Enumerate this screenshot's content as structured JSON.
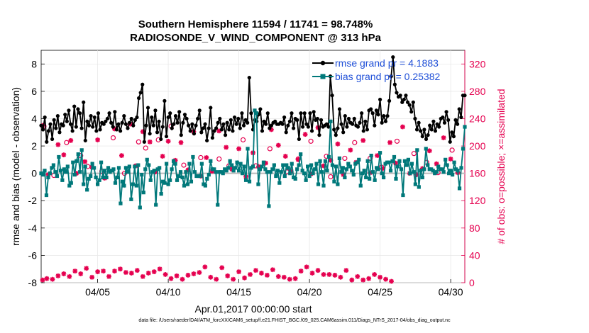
{
  "chart_data": {
    "type": "line",
    "title": "Southern Hemisphere 11594 / 11741 = 98.748%",
    "subtitle": "RADIOSONDE_V_WIND_COMPONENT @ 313 hPa",
    "xlabel": "Apr.01,2017 00:00:00 start",
    "ylabel": "rmse and bias (model - observation)",
    "y2label": "# of obs: o=possible; ×=assimilated",
    "x_ticks": [
      "04/05",
      "04/10",
      "04/15",
      "04/20",
      "04/25",
      "04/30"
    ],
    "x_tick_days": [
      5,
      10,
      15,
      20,
      25,
      30
    ],
    "xlim_days": [
      1,
      31
    ],
    "ylim": [
      -8,
      9
    ],
    "y_ticks": [
      -8,
      -6,
      -4,
      -2,
      0,
      2,
      4,
      6,
      8
    ],
    "y2lim": [
      0,
      340
    ],
    "y2_ticks": [
      0,
      40,
      80,
      120,
      160,
      200,
      240,
      280,
      320
    ],
    "legend": {
      "position": "top-right",
      "rmse_label": "rmse grand pr = 4.1883",
      "bias_label": "bias grand pr = 0.25382"
    },
    "series": [
      {
        "name": "rmse",
        "color": "#000000",
        "values": [
          3.5,
          3.2,
          4.1,
          2.3,
          3.1,
          3.6,
          2.5,
          3.9,
          3.3,
          4.2,
          3.0,
          3.6,
          3.5,
          4.3,
          3.8,
          4.6,
          3.6,
          3.1,
          4.9,
          3.4,
          4.7,
          4.4,
          3.3,
          5.2,
          2.4,
          3.8,
          3.5,
          4.2,
          3.4,
          4.1,
          3.1,
          4.4,
          3.2,
          3.7,
          3.6,
          3.8,
          4.0,
          4.4,
          3.7,
          3.4,
          4.5,
          3.2,
          3.6,
          3.1,
          3.7,
          4.2,
          3.6,
          3.3,
          3.7,
          4.0,
          3.5,
          3.9,
          4.1,
          5.5,
          5.9,
          6.5,
          2.3,
          3.5,
          4.8,
          2.9,
          4.1,
          3.5,
          4.6,
          3.0,
          3.8,
          2.5,
          3.4,
          5.3,
          2.7,
          4.1,
          4.4,
          3.3,
          3.6,
          4.2,
          3.7,
          4.5,
          2.8,
          3.7,
          4.3,
          4.0,
          3.5,
          3.1,
          3.6,
          2.9,
          3.5,
          4.0,
          4.6,
          3.0,
          3.3,
          3.6,
          2.4,
          3.3,
          4.8,
          2.6,
          3.1,
          3.3,
          3.7,
          4.0,
          3.2,
          3.6,
          2.8,
          3.7,
          3.2,
          3.9,
          3.1,
          4.1,
          3.6,
          4.0,
          3.3,
          4.4,
          3.5,
          3.9,
          3.7,
          7.0,
          4.4,
          3.2,
          3.9,
          3.8,
          4.3,
          4.7,
          3.1,
          3.8,
          3.6,
          4.4,
          3.3,
          3.5,
          3.7,
          3.8,
          3.6,
          3.6,
          3.7,
          3.6,
          4.1,
          3.0,
          3.5,
          3.8,
          4.4,
          3.3,
          4.0,
          3.9,
          2.5,
          4.4,
          3.4,
          4.4,
          3.6,
          3.4,
          4.4,
          3.1,
          4.5,
          3.9,
          4.0,
          2.8,
          3.9,
          3.4,
          3.5,
          3.6,
          3.4,
          7.1,
          5.7,
          3.2,
          2.8,
          3.3,
          4.7,
          3.6,
          3.0,
          4.2,
          3.4,
          4.0,
          3.7,
          3.6,
          4.0,
          3.5,
          3.4,
          3.7,
          4.4,
          3.1,
          3.8,
          3.2,
          4.6,
          4.7,
          4.4,
          3.5,
          4.6,
          4.3,
          5.4,
          3.7,
          4.2,
          3.8,
          4.2,
          5.3,
          7.1,
          8.5,
          6.5,
          5.9,
          5.6,
          5.7,
          5.2,
          5.4,
          5.7,
          5.2,
          5.0,
          4.5,
          5.2,
          4.0,
          3.2,
          3.7,
          3.1,
          2.7,
          3.2,
          2.5,
          2.8,
          3.5,
          3.2,
          3.8,
          3.1,
          3.6,
          3.4,
          4.0,
          4.1,
          3.7,
          4.5,
          3.9,
          2.3,
          3.0,
          2.7,
          3.9,
          3.6,
          4.7,
          4.1,
          5.7,
          5.7
        ]
      },
      {
        "name": "bias",
        "color": "#00787a",
        "values": [
          0.0,
          -0.1,
          0.2,
          -1.6,
          -0.3,
          0.0,
          0.4,
          0.6,
          0.1,
          -0.2,
          1.2,
          0.2,
          -0.5,
          0.3,
          0.1,
          0.5,
          -0.9,
          -0.7,
          0.8,
          -0.1,
          0.9,
          1.4,
          0.1,
          1.7,
          -0.8,
          0.5,
          -1.2,
          -0.4,
          -0.2,
          0.7,
          0.4,
          -0.3,
          -0.8,
          -0.5,
          0.8,
          -0.3,
          0.2,
          -0.3,
          0.4,
          0.1,
          0.2,
          0.3,
          -0.7,
          -0.3,
          0.4,
          -2.2,
          -0.6,
          -0.9,
          0.4,
          0.1,
          0.5,
          -1.9,
          -0.8,
          0.5,
          -0.9,
          0.6,
          -2.5,
          -0.1,
          -1.4,
          0.3,
          1.0,
          0.6,
          -0.5,
          0.1,
          0.2,
          -2.3,
          0.3,
          0.4,
          -1.5,
          -0.6,
          -0.7,
          0.7,
          -0.8,
          -0.5,
          0.3,
          0.9,
          0.7,
          -0.5,
          -0.2,
          0.1,
          -0.3,
          -0.9,
          0.1,
          -0.8,
          0.7,
          -0.6,
          1.2,
          0.1,
          -0.2,
          -0.2,
          -0.2,
          0.7,
          -0.8,
          -0.9,
          -0.4,
          -0.1,
          0.9,
          0.3,
          0.3,
          0.1,
          -2.3,
          0.1,
          0.1,
          0.0,
          0.3,
          0.2,
          0.4,
          0.9,
          0.6,
          0.2,
          0.4,
          0.8,
          0.2,
          0.7,
          0.0,
          0.5,
          -0.5,
          1.8,
          -0.6,
          0.4,
          0.5,
          4.6,
          4.4,
          -0.8,
          0.3,
          0.5,
          0.8,
          0.3,
          0.1,
          -2.4,
          0.1,
          0.3,
          0.6,
          -0.2,
          0.2,
          -0.7,
          0.1,
          0.6,
          -0.2,
          0.6,
          0.4,
          0.0,
          0.7,
          -0.3,
          -0.4,
          0.3,
          0.6,
          1.4,
          0.2,
          0.0,
          -0.5,
          0.5,
          -0.2,
          0.6,
          0.0,
          0.3,
          0.7,
          -0.8,
          0.9,
          0.1,
          -0.9,
          0.9,
          0.2,
          1.2,
          3.8,
          0.6,
          -0.6,
          0.5,
          -0.8,
          1.1,
          0.1,
          0.4,
          -0.3,
          0.3,
          0.7,
          0.5,
          0.2,
          -0.1,
          0.7,
          0.8,
          1.0,
          -0.9,
          0.0,
          0.2,
          -0.3,
          0.9,
          -0.4,
          1.3,
          0.1,
          -0.5,
          0.4,
          0.3,
          1.5,
          0.0,
          -0.3,
          0.7,
          0.8,
          0.8,
          0.2,
          0.9,
          1.2,
          -0.4,
          0.5,
          0.9,
          0.3,
          -1.6,
          0.9,
          0.6,
          1.0,
          0.0,
          0.7,
          0.1,
          -0.8,
          1.7,
          -1.0,
          0.2,
          -0.3,
          0.3,
          1.8,
          0.6,
          0.3,
          0.3,
          0.2,
          0.0,
          0.1,
          0.5,
          0.3,
          0.3,
          0.1,
          1.0,
          0.6,
          0.0,
          0.2,
          -0.1,
          0.8,
          0.3,
          0.2,
          -1.1,
          0.4,
          1.8,
          3.4
        ]
      },
      {
        "name": "obs possible",
        "color": "#e5004f",
        "days": [
          1.2,
          1.9,
          2.8,
          3.8,
          4.3,
          5.3,
          6.1,
          6.9,
          7.9,
          8.4,
          9.3,
          10.2,
          11.1,
          12.3,
          13.6,
          14.3,
          15.3,
          16.2,
          17.2,
          18.4,
          19.2,
          20.1,
          21.2,
          21.5,
          22.5,
          23.2,
          24.3,
          25.1,
          26.2,
          27.4,
          28.3,
          29.1,
          30.1
        ],
        "counts": [
          229,
          157,
          205,
          186,
          170,
          163,
          212,
          160,
          206,
          197,
          209,
          229,
          172,
          183,
          181,
          171,
          209,
          171,
          196,
          162,
          181,
          207,
          185,
          155,
          182,
          205,
          182,
          169,
          207,
          189,
          176,
          161,
          194
        ]
      },
      {
        "name": "obs assimilated",
        "color": "#e5004f",
        "days": [
          1.1,
          1.5,
          2.2,
          2.6,
          3.1,
          3.5,
          4.1,
          4.6,
          5.0,
          5.5,
          6.2,
          6.7,
          7.3,
          7.7,
          8.2,
          8.7,
          9.1,
          9.6,
          10.0,
          10.5,
          10.9,
          11.4,
          11.8,
          12.3,
          12.7,
          13.1,
          13.6,
          14.1,
          14.5,
          15.0,
          15.5,
          16.0,
          16.4,
          16.9,
          17.3,
          17.8,
          18.3,
          18.7,
          19.2,
          19.7,
          20.1,
          20.6,
          21.0,
          21.5,
          22.0,
          22.4,
          22.9,
          23.3,
          23.8,
          24.3,
          24.8,
          25.2,
          25.7,
          26.1,
          26.6,
          27.1,
          27.6,
          28.0,
          28.5,
          29.0,
          29.5,
          30.0,
          30.5
        ],
        "counts": [
          230,
          158,
          202,
          187,
          208,
          160,
          177,
          169,
          209,
          153,
          225,
          186,
          232,
          171,
          221,
          206,
          162,
          185,
          207,
          179,
          205,
          165,
          221,
          156,
          183,
          163,
          222,
          198,
          166,
          196,
          155,
          190,
          170,
          175,
          224,
          201,
          185,
          163,
          180,
          217,
          159,
          227,
          171,
          179,
          203,
          158,
          194,
          176,
          208,
          161,
          186,
          167,
          205,
          175,
          228,
          160,
          158,
          167,
          193,
          174,
          212,
          181,
          161
        ],
        "counts_bottom": [
          4,
          6,
          5,
          10,
          13,
          9,
          17,
          13,
          21,
          8,
          16,
          17,
          9,
          17,
          20,
          15,
          14,
          18,
          9,
          14,
          16,
          20,
          12,
          6,
          10,
          5,
          11,
          13,
          15,
          23,
          8,
          5,
          22,
          10,
          5,
          16,
          7,
          12,
          18,
          14,
          11,
          19,
          9,
          8,
          5,
          6,
          17,
          23,
          14,
          18,
          12,
          12,
          11,
          8,
          18,
          4,
          9,
          4,
          6,
          12,
          8,
          5,
          2
        ],
        "bottom_days": [
          1.1,
          1.4,
          1.8,
          2.2,
          2.6,
          3.0,
          3.4,
          3.8,
          4.2,
          4.6,
          5.0,
          5.4,
          5.8,
          6.2,
          6.6,
          7.0,
          7.4,
          7.8,
          8.2,
          8.6,
          9.0,
          9.4,
          9.8,
          10.2,
          10.6,
          11.0,
          11.4,
          11.8,
          12.2,
          12.6,
          13.0,
          13.4,
          13.8,
          14.2,
          14.6,
          15.0,
          15.4,
          15.8,
          16.2,
          16.6,
          17.0,
          17.4,
          17.8,
          18.2,
          18.6,
          19.0,
          19.4,
          19.8,
          20.2,
          20.6,
          21.0,
          21.4,
          21.8,
          22.2,
          22.6,
          23.0,
          23.4,
          23.8,
          24.2,
          24.6,
          25.0,
          25.4,
          25.8
        ]
      }
    ],
    "footer": "data file: /Users/raeder/DAI/ATM_forcXX/CAM6_setup/f.e21.FHIST_BGC.f09_025.CAM6assim.011/Diags_NTrS_2017-04/obs_diag_output.nc"
  }
}
